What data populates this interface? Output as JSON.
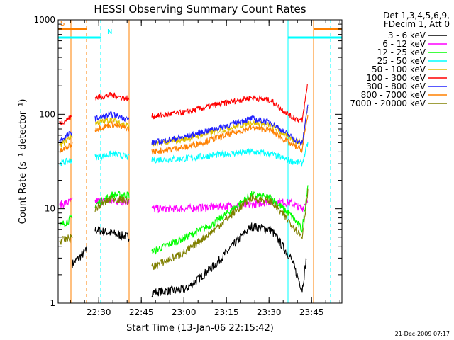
{
  "chart_data": {
    "type": "line",
    "title": "HESSI Observing Summary Count Rates",
    "xlabel": "Start Time (13-Jan-06 22:15:42)",
    "ylabel": "Count Rate (s⁻¹ detector⁻¹)",
    "y_scale": "log",
    "ylim": [
      1,
      1000
    ],
    "xlim_minutes": [
      0,
      100
    ],
    "x_ticks": [
      {
        "t": 14.3,
        "label": "22:30"
      },
      {
        "t": 29.3,
        "label": "22:45"
      },
      {
        "t": 44.3,
        "label": "23:00"
      },
      {
        "t": 59.3,
        "label": "23:15"
      },
      {
        "t": 74.3,
        "label": "23:30"
      },
      {
        "t": 89.3,
        "label": "23:45"
      }
    ],
    "y_ticks": [
      {
        "v": 1,
        "label": "1"
      },
      {
        "v": 10,
        "label": "10"
      },
      {
        "v": 100,
        "label": "100"
      },
      {
        "v": 1000,
        "label": "1000"
      }
    ],
    "legend": {
      "placement": "right-outside",
      "header_line1": "Det 1,3,4,5,6,9,",
      "header_line2": "FDecim 1, Att 0"
    },
    "series": [
      {
        "name": "3 - 6 keV",
        "color": "#000000",
        "segments": [
          {
            "t": [
              5,
              10
            ],
            "v": [
              2.6,
              3.6
            ]
          },
          {
            "t": [
              13,
              25
            ],
            "v": [
              6,
              5
            ]
          },
          {
            "t": [
              33,
              45,
              55,
              68,
              75,
              82,
              86,
              87.5
            ],
            "v": [
              1.3,
              1.4,
              2.5,
              6.5,
              6,
              3,
              1.4,
              3
            ]
          }
        ]
      },
      {
        "name": "6 - 12 keV",
        "color": "#ff00ff",
        "segments": [
          {
            "t": [
              0.5,
              5
            ],
            "v": [
              11,
              12
            ]
          },
          {
            "t": [
              13,
              19,
              25
            ],
            "v": [
              12,
              12,
              12
            ]
          },
          {
            "t": [
              33,
              45,
              55,
              68,
              75,
              82,
              86,
              88
            ],
            "v": [
              10,
              10,
              10.5,
              11,
              12,
              11.5,
              10,
              13
            ]
          }
        ]
      },
      {
        "name": "12 - 25 keV",
        "color": "#00ff00",
        "segments": [
          {
            "t": [
              0.5,
              5
            ],
            "v": [
              6.5,
              8
            ]
          },
          {
            "t": [
              13,
              19,
              25
            ],
            "v": [
              11,
              14,
              14
            ]
          },
          {
            "t": [
              33,
              45,
              55,
              68,
              75,
              82,
              86,
              88
            ],
            "v": [
              3.5,
              5,
              7,
              14,
              13,
              8.5,
              6,
              18
            ]
          }
        ]
      },
      {
        "name": "25 - 50 keV",
        "color": "#00ffff",
        "segments": [
          {
            "t": [
              0.5,
              5
            ],
            "v": [
              30,
              33
            ]
          },
          {
            "t": [
              13,
              19,
              25
            ],
            "v": [
              35,
              38,
              35
            ]
          },
          {
            "t": [
              33,
              45,
              55,
              68,
              75,
              82,
              86,
              88
            ],
            "v": [
              33,
              34,
              37,
              40,
              38,
              32,
              30,
              50
            ]
          }
        ]
      },
      {
        "name": "50 - 100 keV",
        "color": "#e0c000",
        "segments": [
          {
            "t": [
              0.5,
              5
            ],
            "v": [
              46,
              60
            ]
          },
          {
            "t": [
              13,
              19,
              25
            ],
            "v": [
              80,
              88,
              75
            ]
          },
          {
            "t": [
              33,
              45,
              55,
              68,
              75,
              82,
              86,
              88
            ],
            "v": [
              48,
              55,
              65,
              82,
              76,
              55,
              50,
              120
            ]
          }
        ]
      },
      {
        "name": "100 - 300 keV",
        "color": "#ff0000",
        "segments": [
          {
            "t": [
              0.5,
              5
            ],
            "v": [
              80,
              95
            ]
          },
          {
            "t": [
              13,
              19,
              25
            ],
            "v": [
              150,
              160,
              145
            ]
          },
          {
            "t": [
              33,
              45,
              55,
              68,
              75,
              82,
              86,
              88
            ],
            "v": [
              95,
              105,
              125,
              150,
              140,
              95,
              85,
              220
            ]
          }
        ]
      },
      {
        "name": "300 - 800 keV",
        "color": "#2020ff",
        "segments": [
          {
            "t": [
              0.5,
              5
            ],
            "v": [
              52,
              65
            ]
          },
          {
            "t": [
              13,
              19,
              25
            ],
            "v": [
              90,
              100,
              88
            ]
          },
          {
            "t": [
              33,
              45,
              55,
              68,
              75,
              82,
              86,
              88
            ],
            "v": [
              50,
              58,
              70,
              90,
              82,
              58,
              48,
              130
            ]
          }
        ]
      },
      {
        "name": "800 - 7000 keV",
        "color": "#ff8000",
        "segments": [
          {
            "t": [
              0.5,
              5
            ],
            "v": [
              40,
              48
            ]
          },
          {
            "t": [
              13,
              19,
              25
            ],
            "v": [
              70,
              78,
              70
            ]
          },
          {
            "t": [
              33,
              45,
              55,
              68,
              75,
              82,
              86,
              88
            ],
            "v": [
              40,
              45,
              55,
              72,
              68,
              48,
              42,
              100
            ]
          }
        ]
      },
      {
        "name": "7000 - 20000 keV",
        "color": "#808000",
        "segments": [
          {
            "t": [
              0.5,
              5
            ],
            "v": [
              4.5,
              5
            ]
          },
          {
            "t": [
              13,
              19,
              25
            ],
            "v": [
              10,
              13,
              12
            ]
          },
          {
            "t": [
              33,
              45,
              55,
              68,
              75,
              82,
              86,
              88
            ],
            "v": [
              2.4,
              3.5,
              6,
              13,
              12,
              7,
              5,
              16
            ]
          }
        ]
      }
    ],
    "flags": [
      {
        "label": "S",
        "color": "#ff8000",
        "t_start": 0,
        "t_end": 10,
        "level": 800
      },
      {
        "label": "",
        "color": "#ff8000",
        "t_start": 90,
        "t_end": 100,
        "level": 800
      },
      {
        "label": "N",
        "color": "#00ffff",
        "t_start": 0,
        "t_end": 15,
        "level": 650
      },
      {
        "label": "",
        "color": "#00ffff",
        "t_start": 81,
        "t_end": 100,
        "level": 650
      }
    ],
    "markers": [
      {
        "t": 4.5,
        "color": "#ff8000",
        "style": "solid"
      },
      {
        "t": 10,
        "color": "#ff8000",
        "style": "dashed"
      },
      {
        "t": 15,
        "color": "#00ffff",
        "style": "dashed"
      },
      {
        "t": 25,
        "color": "#ff8000",
        "style": "solid"
      },
      {
        "t": 81,
        "color": "#00ffff",
        "style": "solid"
      },
      {
        "t": 90,
        "color": "#ff8000",
        "style": "solid"
      },
      {
        "t": 96,
        "color": "#00ffff",
        "style": "dashed"
      }
    ]
  },
  "footer": {
    "timestamp": "21-Dec-2009 07:17"
  }
}
